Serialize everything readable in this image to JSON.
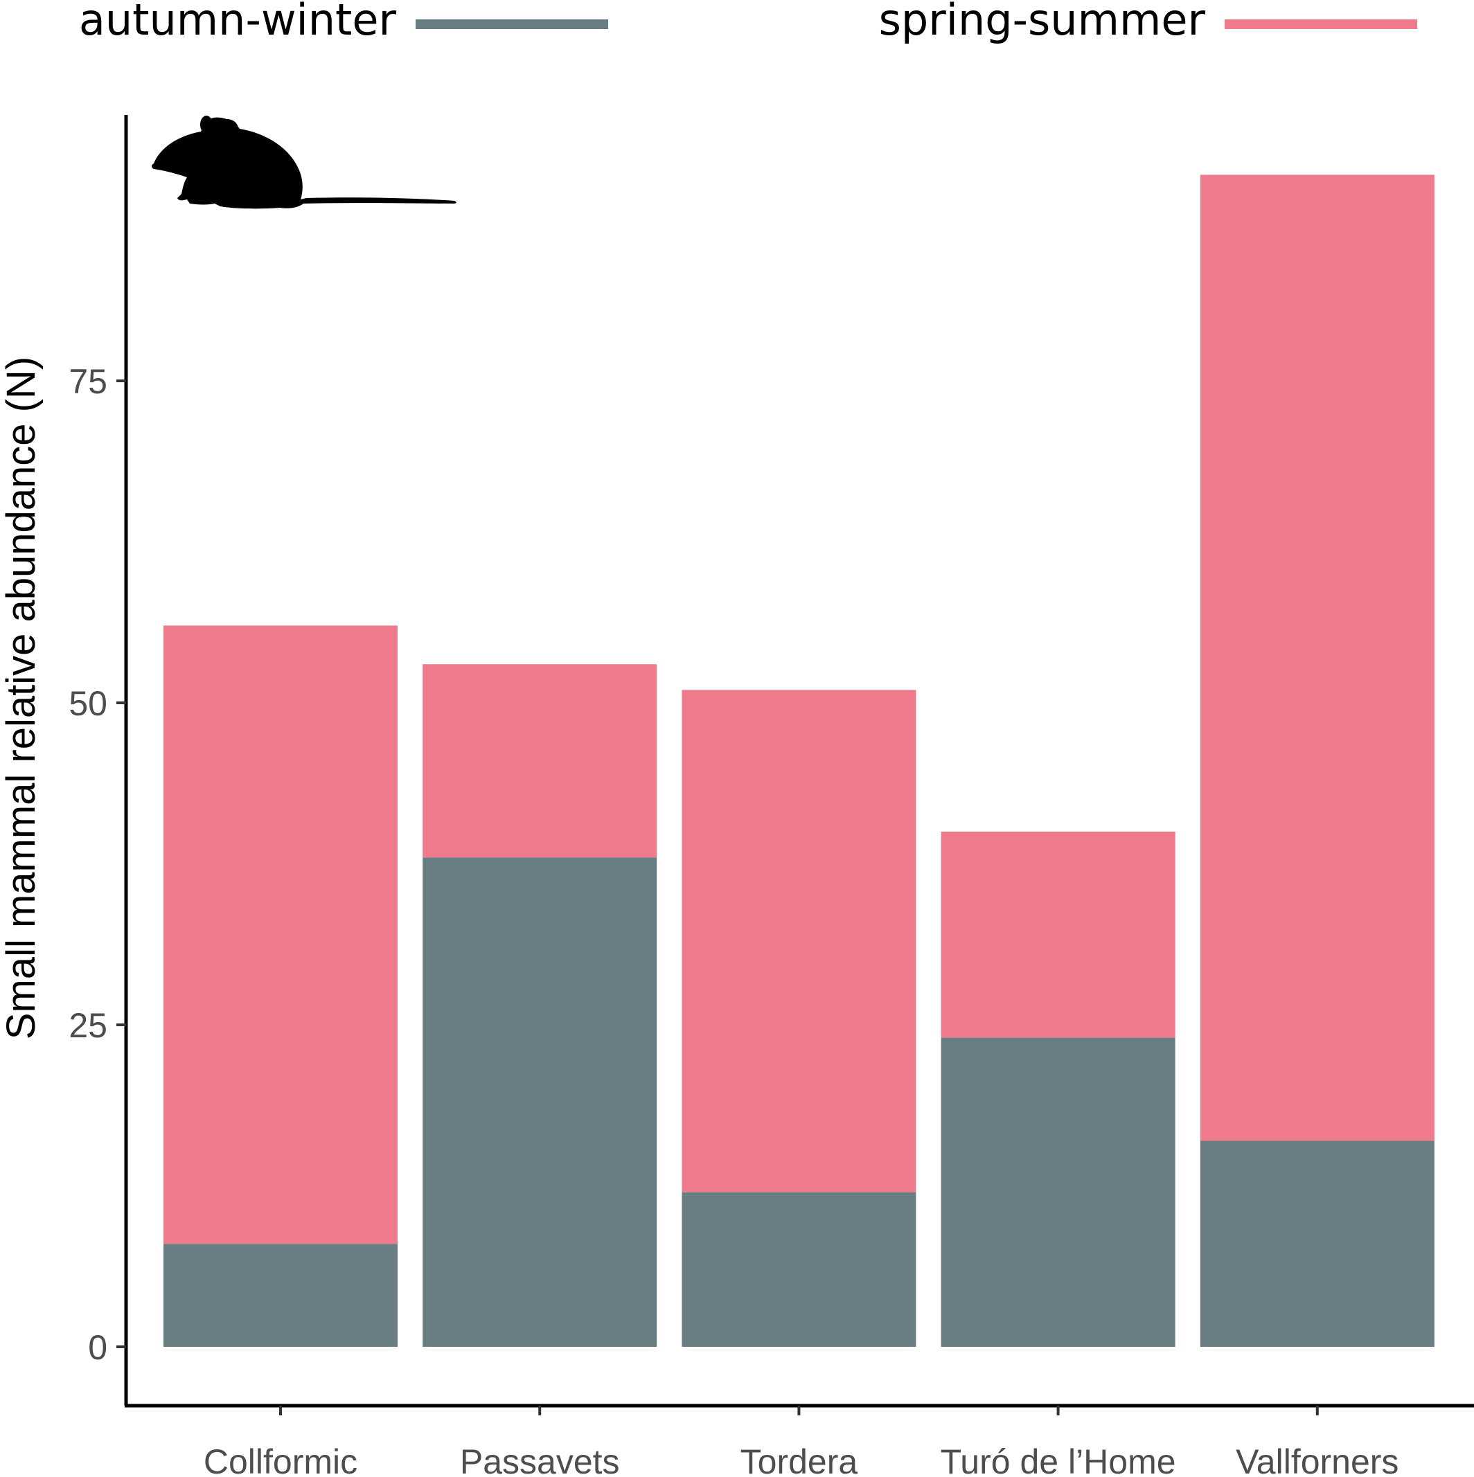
{
  "chart_data": {
    "type": "bar",
    "stacked": true,
    "categories": [
      "Collformic",
      "Passavets",
      "Tordera",
      "Turó de l’Home",
      "Vallforners"
    ],
    "series": [
      {
        "name": "autumn-winter",
        "color": "#697e83",
        "values": [
          8,
          38,
          12,
          24,
          16
        ]
      },
      {
        "name": "spring-summer",
        "color": "#ee7a8b",
        "values": [
          48,
          15,
          39,
          16,
          75
        ]
      }
    ],
    "title": "",
    "xlabel": "",
    "ylabel": "Small mammal relative abundance (N)",
    "ylim": [
      0,
      96
    ],
    "yticks": [
      0,
      25,
      50,
      75
    ],
    "grid": false,
    "legend_position": "top",
    "icon": "mouse-silhouette-icon"
  }
}
